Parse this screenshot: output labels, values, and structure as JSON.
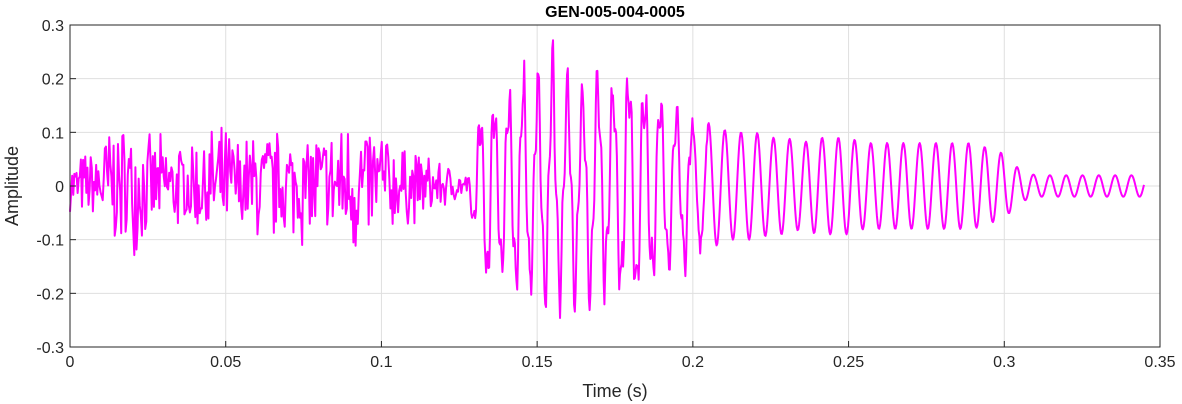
{
  "chart_data": {
    "type": "line",
    "title": "GEN-005-004-0005",
    "xlabel": "Time (s)",
    "ylabel": "Amplitude",
    "xlim": [
      0,
      0.35
    ],
    "ylim": [
      -0.3,
      0.3
    ],
    "xticks": [
      0,
      0.05,
      0.1,
      0.15,
      0.2,
      0.25,
      0.3,
      0.35
    ],
    "xtick_labels": [
      "0",
      "0.05",
      "0.1",
      "0.15",
      "0.2",
      "0.25",
      "0.3",
      "0.35"
    ],
    "yticks": [
      -0.3,
      -0.2,
      -0.1,
      0,
      0.1,
      0.2,
      0.3
    ],
    "ytick_labels": [
      "-0.3",
      "-0.2",
      "-0.1",
      "0",
      "0.1",
      "0.2",
      "0.3"
    ],
    "grid": true,
    "line_color": "#ff00ff",
    "series": [
      {
        "name": "",
        "x": [
          0.0,
          0.005,
          0.01,
          0.013,
          0.015,
          0.02,
          0.025,
          0.03,
          0.035,
          0.04,
          0.045,
          0.05,
          0.055,
          0.06,
          0.065,
          0.07,
          0.075,
          0.08,
          0.085,
          0.09,
          0.095,
          0.1,
          0.105,
          0.11,
          0.115,
          0.12,
          0.125,
          0.128,
          0.131,
          0.134,
          0.137,
          0.14,
          0.143,
          0.146,
          0.149,
          0.152,
          0.155,
          0.158,
          0.161,
          0.164,
          0.167,
          0.17,
          0.173,
          0.176,
          0.179,
          0.182,
          0.185,
          0.188,
          0.191,
          0.194,
          0.197,
          0.2,
          0.204,
          0.208,
          0.212,
          0.216,
          0.22,
          0.225,
          0.23,
          0.235,
          0.24,
          0.245,
          0.25,
          0.255,
          0.26,
          0.265,
          0.27,
          0.275,
          0.28,
          0.285,
          0.29,
          0.295,
          0.3,
          0.305,
          0.31,
          0.315,
          0.32,
          0.325,
          0.33,
          0.335,
          0.34,
          0.345
        ],
        "y_env": [
          0.05,
          0.07,
          0.09,
          0.15,
          0.12,
          0.14,
          0.1,
          0.1,
          0.09,
          0.1,
          0.12,
          0.12,
          0.1,
          0.12,
          0.12,
          0.11,
          0.12,
          0.12,
          0.12,
          0.16,
          0.13,
          0.14,
          0.08,
          0.08,
          0.06,
          0.05,
          0.03,
          0.03,
          0.12,
          0.19,
          0.16,
          0.18,
          0.2,
          0.21,
          0.2,
          0.22,
          0.23,
          0.2,
          0.21,
          0.19,
          0.2,
          0.21,
          0.18,
          0.2,
          0.22,
          0.23,
          0.19,
          0.18,
          0.16,
          0.14,
          0.15,
          0.14,
          0.12,
          0.11,
          0.1,
          0.1,
          0.1,
          0.09,
          0.09,
          0.08,
          0.09,
          0.09,
          0.09,
          0.08,
          0.08,
          0.08,
          0.08,
          0.08,
          0.08,
          0.08,
          0.08,
          0.07,
          0.06,
          0.03,
          0.02,
          0.02,
          0.02,
          0.02,
          0.02,
          0.02,
          0.02,
          0.02
        ]
      }
    ]
  }
}
